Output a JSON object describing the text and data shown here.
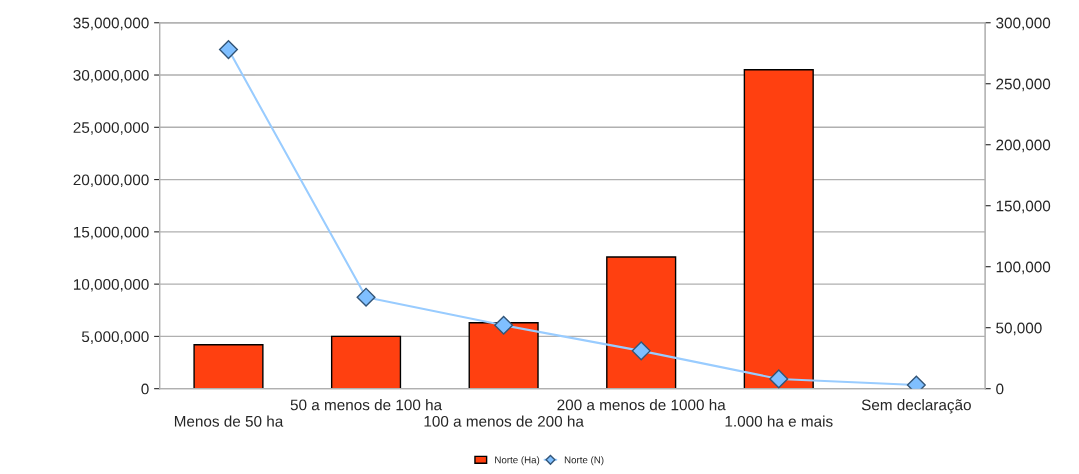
{
  "chart_data": {
    "type": "bar",
    "categories": [
      "Menos de 50 ha",
      "50 a menos de 100 ha",
      "100 a menos de 200 ha",
      "200 a menos de 1000 ha",
      "1.000 ha e mais",
      "Sem declaração"
    ],
    "series": [
      {
        "name": "Norte (Ha)",
        "color": "#ff4010",
        "values": [
          4200000,
          5000000,
          6300000,
          12600000,
          30500000,
          null
        ]
      },
      {
        "name": "Norte (N)",
        "type": "line",
        "axis": "y2",
        "color": "#99ccff",
        "marker": "diamond",
        "values": [
          278000,
          75000,
          52000,
          31000,
          8000,
          3000
        ]
      }
    ],
    "ylim": [
      0,
      35000000
    ],
    "yticks": [
      {
        "value": 0,
        "label": "0"
      },
      {
        "value": 5000000,
        "label": "5,000,000"
      },
      {
        "value": 10000000,
        "label": "10,000,000"
      },
      {
        "value": 15000000,
        "label": "15,000,000"
      },
      {
        "value": 20000000,
        "label": "20,000,000"
      },
      {
        "value": 25000000,
        "label": "25,000,000"
      },
      {
        "value": 30000000,
        "label": "30,000,000"
      },
      {
        "value": 35000000,
        "label": "35,000,000"
      }
    ],
    "y2lim": [
      0,
      300000
    ],
    "y2ticks": [
      {
        "value": 0,
        "label": "0"
      },
      {
        "value": 50000,
        "label": "50,000"
      },
      {
        "value": 100000,
        "label": "100,000"
      },
      {
        "value": 150000,
        "label": "150,000"
      },
      {
        "value": 200000,
        "label": "200,000"
      },
      {
        "value": 250000,
        "label": "250,000"
      },
      {
        "value": 300000,
        "label": "300,000"
      }
    ],
    "grid": "y",
    "legend": "bottom"
  }
}
